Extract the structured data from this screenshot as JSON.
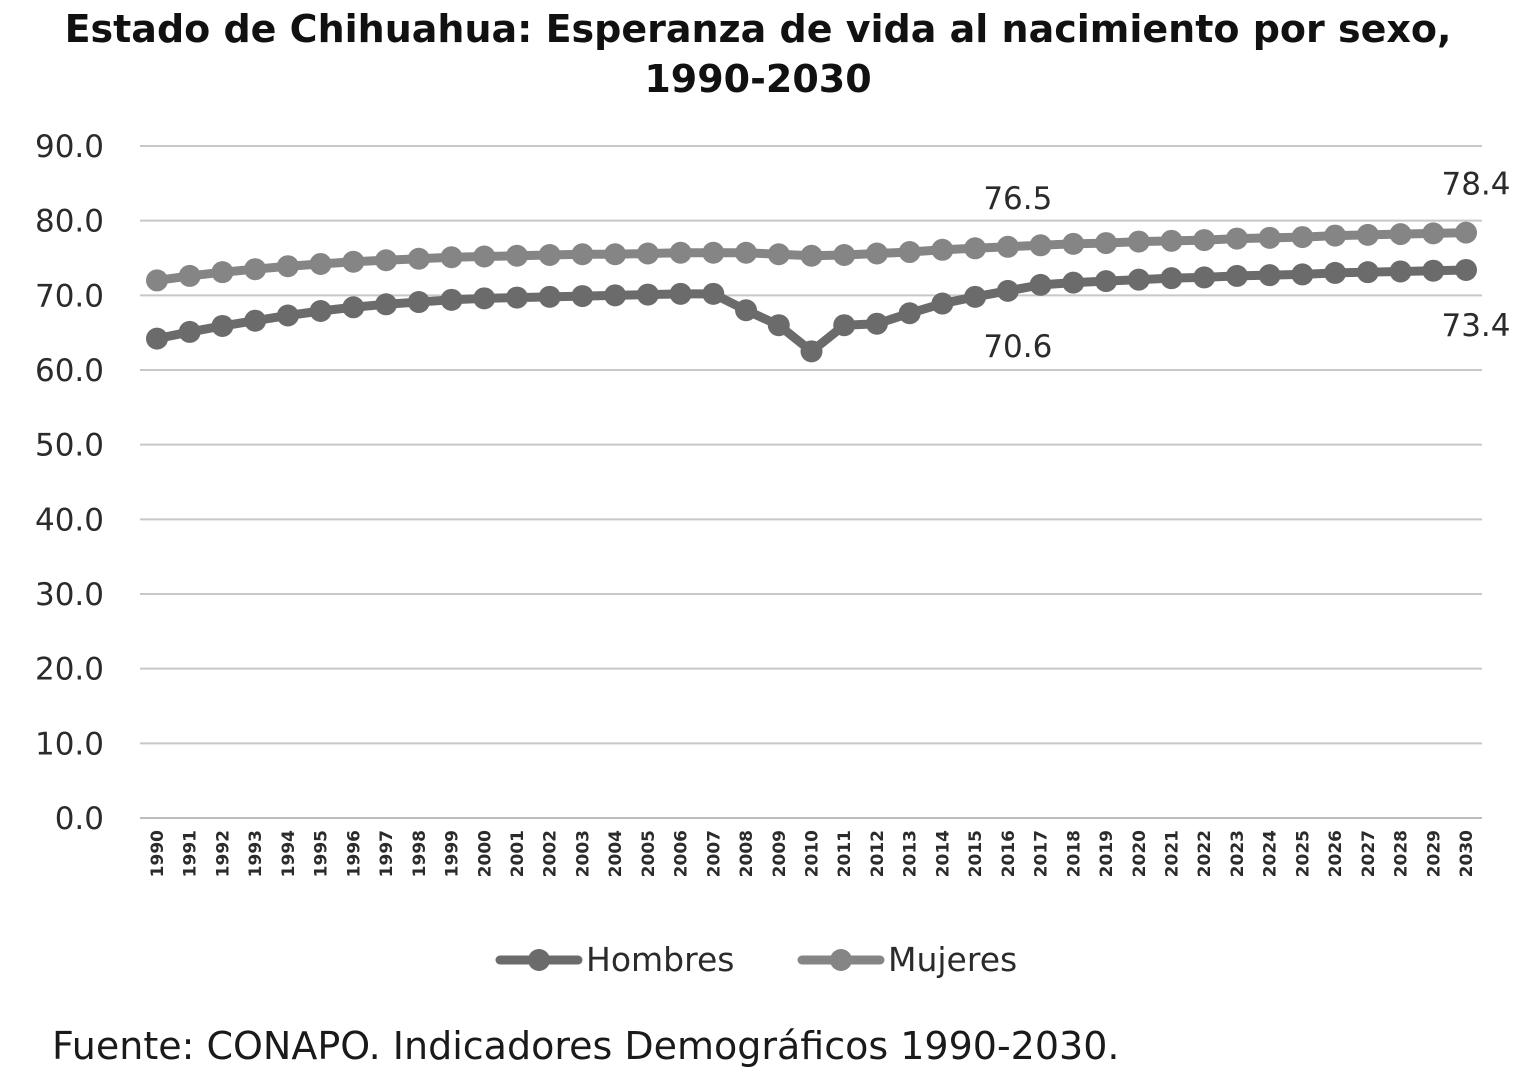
{
  "chart_data": {
    "type": "line",
    "title_line1": "Estado de Chihuahua: Esperanza de vida al nacimiento por sexo,",
    "title_line2": "1990-2030",
    "xlabel": "",
    "ylabel": "",
    "ylim": [
      0,
      90
    ],
    "yticks": [
      "0.0",
      "10.0",
      "20.0",
      "30.0",
      "40.0",
      "50.0",
      "60.0",
      "70.0",
      "80.0",
      "90.0"
    ],
    "grid": true,
    "legend_position": "bottom",
    "categories": [
      "1990",
      "1991",
      "1992",
      "1993",
      "1994",
      "1995",
      "1996",
      "1997",
      "1998",
      "1999",
      "2000",
      "2001",
      "2002",
      "2003",
      "2004",
      "2005",
      "2006",
      "2007",
      "2008",
      "2009",
      "2010",
      "2011",
      "2012",
      "2013",
      "2014",
      "2015",
      "2016",
      "2017",
      "2018",
      "2019",
      "2020",
      "2021",
      "2022",
      "2023",
      "2024",
      "2025",
      "2026",
      "2027",
      "2028",
      "2029",
      "2030"
    ],
    "series": [
      {
        "name": "Hombres",
        "color": "#6b6b6b",
        "values": [
          64.2,
          65.1,
          65.9,
          66.6,
          67.3,
          67.9,
          68.4,
          68.8,
          69.1,
          69.4,
          69.6,
          69.7,
          69.8,
          69.9,
          70.0,
          70.1,
          70.2,
          70.2,
          68.0,
          66.0,
          62.5,
          66.0,
          66.2,
          67.6,
          68.9,
          69.8,
          70.6,
          71.4,
          71.7,
          71.9,
          72.1,
          72.3,
          72.4,
          72.6,
          72.7,
          72.8,
          73.0,
          73.1,
          73.2,
          73.3,
          73.4
        ],
        "labels": [
          {
            "index": 26,
            "text": "70.6",
            "pos": "below"
          },
          {
            "index": 40,
            "text": "73.4",
            "pos": "below"
          }
        ]
      },
      {
        "name": "Mujeres",
        "color": "#858585",
        "values": [
          72.0,
          72.6,
          73.1,
          73.5,
          73.9,
          74.2,
          74.5,
          74.7,
          74.9,
          75.1,
          75.2,
          75.3,
          75.4,
          75.5,
          75.5,
          75.6,
          75.7,
          75.7,
          75.7,
          75.5,
          75.3,
          75.4,
          75.6,
          75.8,
          76.1,
          76.3,
          76.5,
          76.7,
          76.9,
          77.0,
          77.2,
          77.3,
          77.4,
          77.6,
          77.7,
          77.8,
          78.0,
          78.1,
          78.2,
          78.3,
          78.4
        ],
        "labels": [
          {
            "index": 26,
            "text": "76.5",
            "pos": "above"
          },
          {
            "index": 40,
            "text": "78.4",
            "pos": "above"
          }
        ]
      }
    ]
  },
  "source": "Fuente: CONAPO. Indicadores Demográficos 1990-2030."
}
